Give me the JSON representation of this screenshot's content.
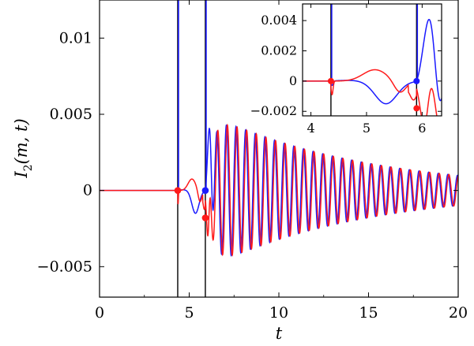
{
  "chart_data": {
    "type": "line",
    "xlabel": "t",
    "ylabel": "I_2(m,t)",
    "ylabel_parts": {
      "main": "I",
      "sub": "2",
      "args": "(m, t)"
    },
    "xlim": [
      0,
      20
    ],
    "ylim": [
      -0.007,
      0.0125
    ],
    "xticks": [
      0,
      5,
      10,
      15,
      20
    ],
    "xtick_labels": [
      "0",
      "5",
      "10",
      "15",
      "20"
    ],
    "yticks": [
      -0.005,
      0,
      0.005,
      0.01
    ],
    "ytick_labels": [
      "−0.005",
      "0",
      "0.005",
      "0.01"
    ],
    "grid": false,
    "colors": {
      "blue": "#1a1aff",
      "red": "#ff1a1a",
      "black": "#000000"
    },
    "series": [
      {
        "color": "blue",
        "onset": 4.36,
        "second_front": 5.9,
        "amplitude": 0.0052,
        "decay_time": 8.5,
        "omega": 11.7,
        "phase": 0.4
      },
      {
        "color": "red",
        "onset": 4.36,
        "second_front": 5.9,
        "amplitude": 0.0052,
        "decay_time": 8.5,
        "omega": 11.7,
        "phase": -0.25
      }
    ],
    "vertical_lines": [
      {
        "x": 4.36,
        "color": "black"
      },
      {
        "x": 5.9,
        "color": "black"
      }
    ],
    "markers": [
      {
        "x": 4.36,
        "y": 0.0,
        "color": "red"
      },
      {
        "x": 5.9,
        "y": 0.0,
        "color": "blue"
      },
      {
        "x": 5.9,
        "y": -0.0018,
        "color": "red"
      }
    ],
    "inset": {
      "xlim": [
        3.85,
        6.35
      ],
      "ylim": [
        -0.0023,
        0.0051
      ],
      "xticks": [
        4,
        5,
        6
      ],
      "xtick_labels": [
        "4",
        "5",
        "6"
      ],
      "yticks": [
        -0.002,
        0,
        0.002,
        0.004
      ],
      "ytick_labels": [
        "−0.002",
        "0",
        "0.002",
        "0.004"
      ]
    }
  }
}
